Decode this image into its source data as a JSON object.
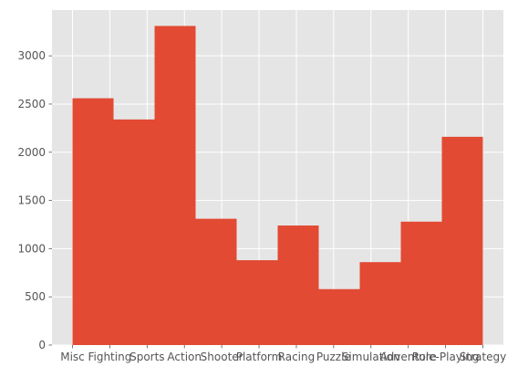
{
  "chart_data": {
    "type": "bar",
    "style": "histogram",
    "categories": [
      "Misc",
      "Fighting",
      "Sports",
      "Action",
      "Shooter",
      "Platform",
      "Racing",
      "Puzzle",
      "Simulation",
      "Adventure",
      "Role-Playing",
      "Strategy"
    ],
    "bins": [
      {
        "start": 0.0,
        "end": 1.1,
        "value": 2560
      },
      {
        "start": 1.1,
        "end": 2.2,
        "value": 2340
      },
      {
        "start": 2.2,
        "end": 3.3,
        "value": 3310
      },
      {
        "start": 3.3,
        "end": 4.4,
        "value": 1310
      },
      {
        "start": 4.4,
        "end": 5.5,
        "value": 880
      },
      {
        "start": 5.5,
        "end": 6.6,
        "value": 1240
      },
      {
        "start": 6.6,
        "end": 7.7,
        "value": 580
      },
      {
        "start": 7.7,
        "end": 8.8,
        "value": 860
      },
      {
        "start": 8.8,
        "end": 9.9,
        "value": 1280
      },
      {
        "start": 9.9,
        "end": 11.0,
        "value": 2160
      }
    ],
    "yticks": [
      0,
      500,
      1000,
      1500,
      2000,
      2500,
      3000
    ],
    "ylim": [
      0,
      3475
    ],
    "xlim": [
      -0.55,
      11.55
    ],
    "title": "",
    "xlabel": "",
    "ylabel": "",
    "grid": true,
    "legend": "none",
    "colors": {
      "bar": "#E24A33",
      "plot_background": "#E5E5E5",
      "grid": "#FFFFFF",
      "text": "#555555"
    }
  }
}
